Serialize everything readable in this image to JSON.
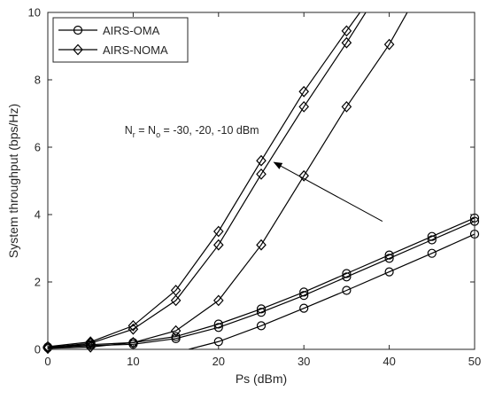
{
  "chart_data": {
    "type": "line",
    "xlabel": "Ps (dBm)",
    "ylabel": "System throughput (bps/Hz)",
    "xlim": [
      0,
      50
    ],
    "ylim": [
      0,
      10
    ],
    "xticks": [
      0,
      10,
      20,
      30,
      40,
      50
    ],
    "yticks": [
      0,
      2,
      4,
      6,
      8,
      10
    ],
    "grid": false,
    "legend_position": "top-left",
    "legend": [
      {
        "label": "AIRS-OMA",
        "marker": "circle"
      },
      {
        "label": "AIRS-NOMA",
        "marker": "diamond"
      }
    ],
    "annotation": {
      "text_main": "N",
      "sub1": "r",
      "text_mid": " = N",
      "sub2": "o",
      "text_end": " = -30, -20, -10 dBm",
      "arrow_from": [
        39.2,
        3.8
      ],
      "arrow_to": [
        26.5,
        5.55
      ],
      "text_anchor": [
        9,
        6.4
      ]
    },
    "series": [
      {
        "group": "AIRS-NOMA",
        "marker": "diamond",
        "x": [
          0,
          5,
          10,
          15,
          20,
          25,
          30,
          35,
          38
        ],
        "y": [
          0.08,
          0.22,
          0.7,
          1.75,
          3.5,
          5.6,
          7.65,
          9.45,
          10.5
        ]
      },
      {
        "group": "AIRS-NOMA",
        "marker": "diamond",
        "x": [
          0,
          5,
          10,
          15,
          20,
          25,
          30,
          35,
          38
        ],
        "y": [
          0.06,
          0.18,
          0.6,
          1.45,
          3.1,
          5.2,
          7.2,
          9.1,
          10.3
        ]
      },
      {
        "group": "AIRS-NOMA",
        "marker": "diamond",
        "x": [
          0,
          5,
          10,
          15,
          20,
          25,
          30,
          35,
          40,
          43
        ],
        "y": [
          0.03,
          0.07,
          0.2,
          0.55,
          1.45,
          3.1,
          5.15,
          7.2,
          9.05,
          10.4
        ]
      },
      {
        "group": "AIRS-OMA",
        "marker": "circle",
        "x": [
          0,
          5,
          10,
          15,
          20,
          25,
          30,
          35,
          40,
          45,
          50
        ],
        "y": [
          0.07,
          0.14,
          0.2,
          0.38,
          0.75,
          1.2,
          1.7,
          2.25,
          2.8,
          3.35,
          3.9
        ]
      },
      {
        "group": "AIRS-OMA",
        "marker": "circle",
        "x": [
          0,
          5,
          10,
          15,
          20,
          25,
          30,
          35,
          40,
          45,
          50
        ],
        "y": [
          0.05,
          0.11,
          0.15,
          0.32,
          0.65,
          1.1,
          1.6,
          2.15,
          2.7,
          3.25,
          3.8
        ]
      },
      {
        "group": "AIRS-OMA",
        "marker": "circle",
        "x": [
          16.5,
          20,
          25,
          30,
          35,
          40,
          45,
          50
        ],
        "y": [
          0.0,
          0.23,
          0.7,
          1.22,
          1.75,
          2.3,
          2.85,
          3.42
        ]
      }
    ]
  }
}
